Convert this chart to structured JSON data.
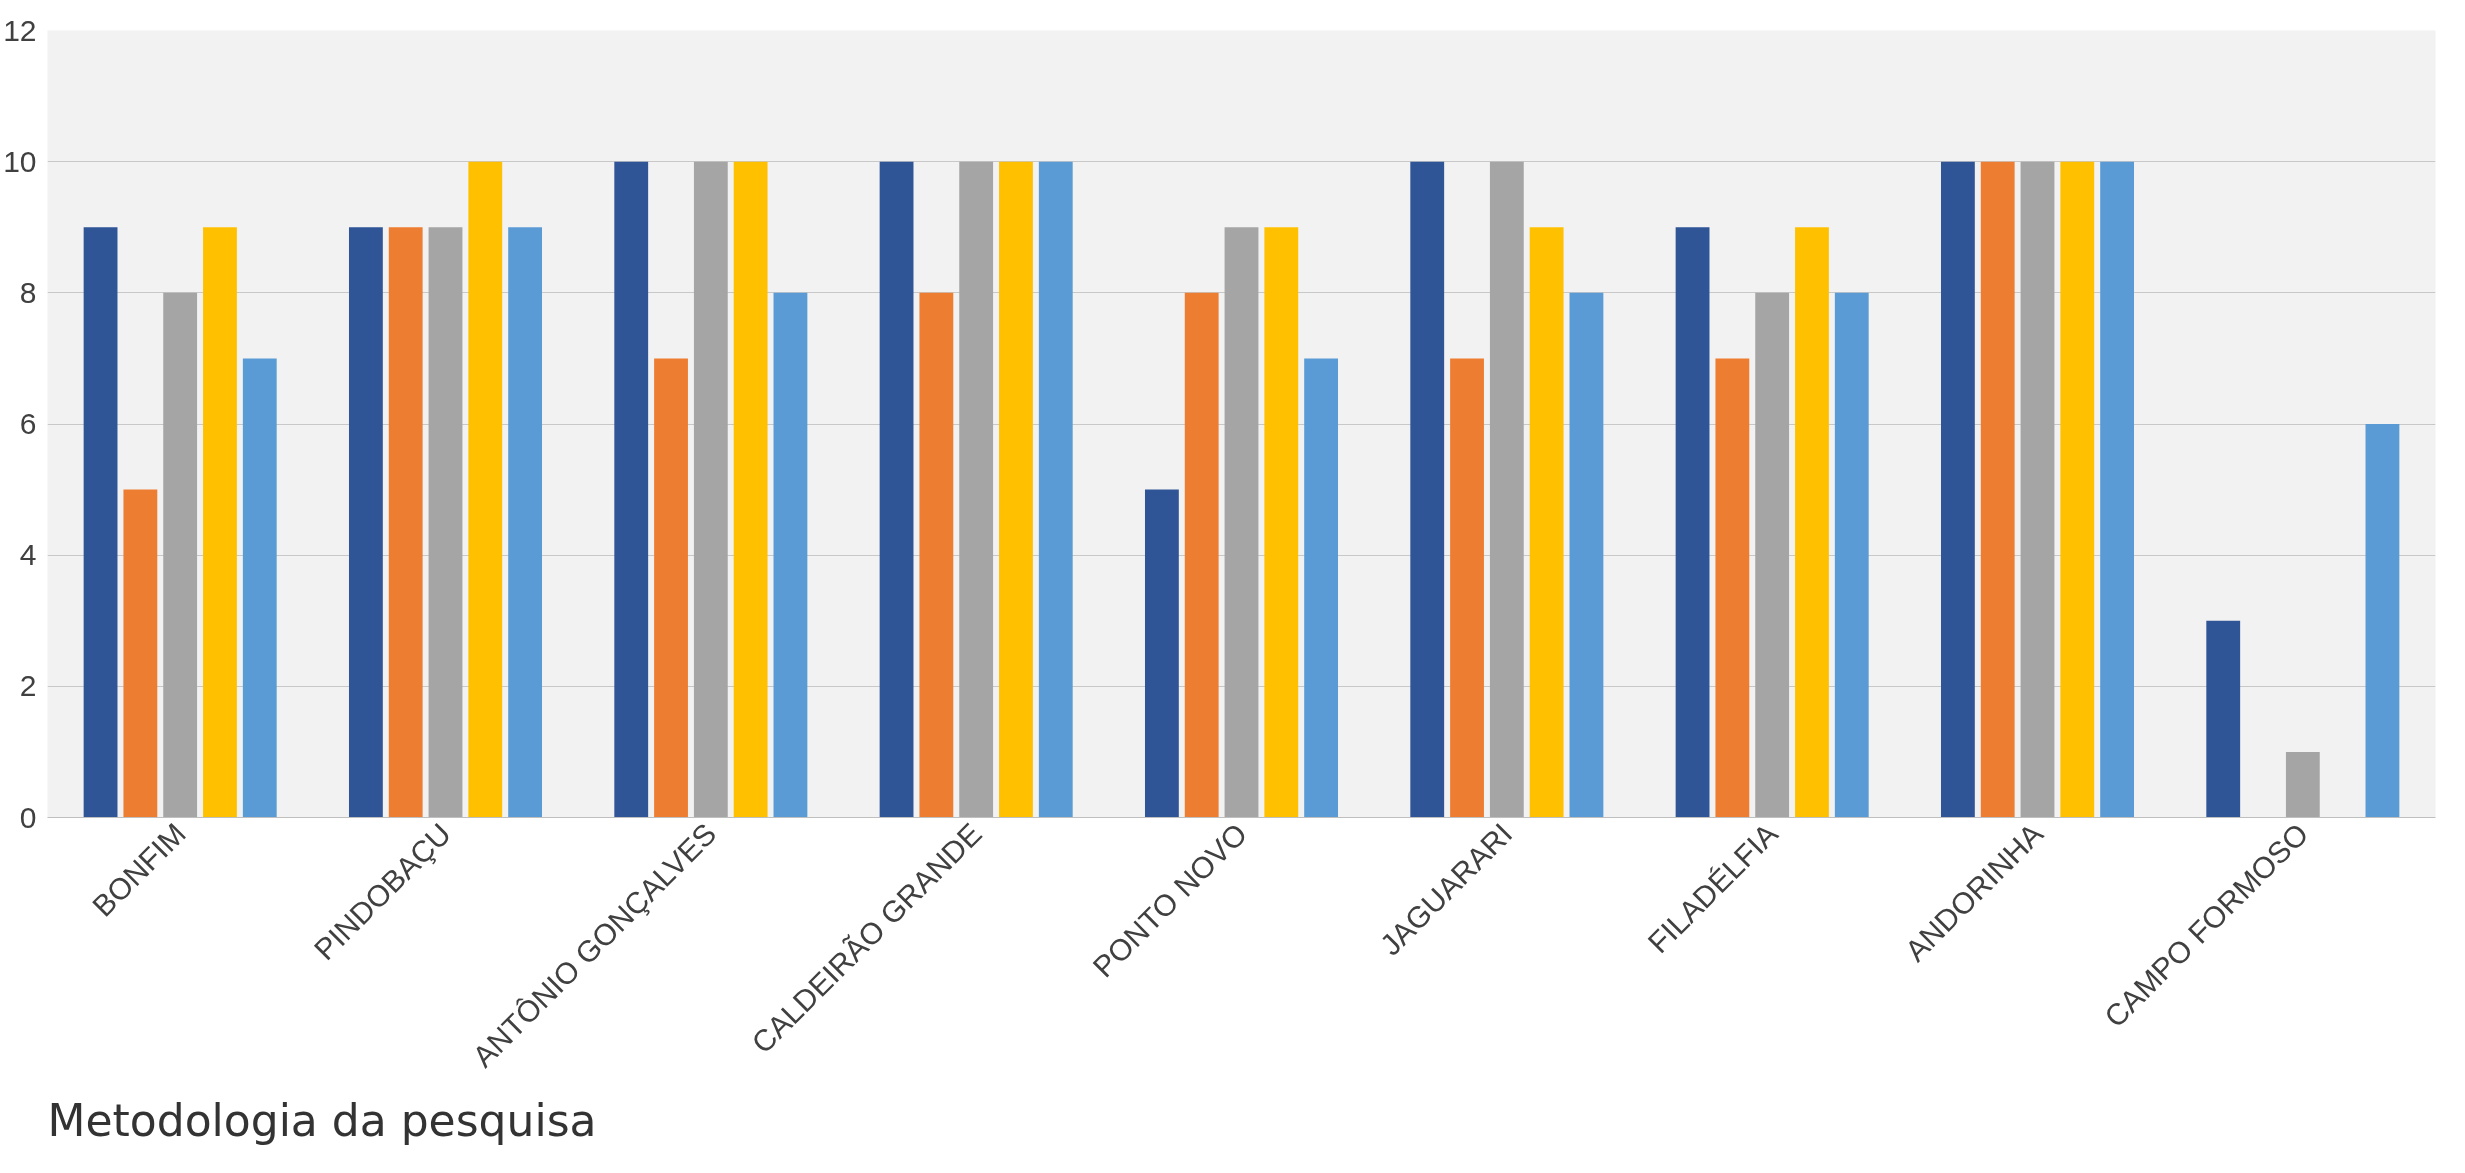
{
  "chart_data": {
    "type": "bar",
    "categories": [
      "BONFIM",
      "PINDOBAÇU",
      "ANTÔNIO GONÇALVES",
      "CALDEIRÃO GRANDE",
      "PONTO NOVO",
      "JAGUARARI",
      "FILADÉLFIA",
      "ANDORINHA",
      "CAMPO FORMOSO"
    ],
    "series": [
      {
        "color": "#2f5597",
        "values": [
          9,
          9,
          10,
          10,
          5,
          10,
          9,
          10,
          3
        ]
      },
      {
        "color": "#ed7d31",
        "values": [
          5,
          9,
          7,
          8,
          8,
          7,
          7,
          10,
          0
        ]
      },
      {
        "color": "#a5a5a5",
        "values": [
          8,
          9,
          10,
          10,
          9,
          10,
          8,
          10,
          1
        ]
      },
      {
        "color": "#ffc000",
        "values": [
          9,
          10,
          10,
          10,
          9,
          9,
          9,
          10,
          0
        ]
      },
      {
        "color": "#5b9bd5",
        "values": [
          7,
          9,
          8,
          10,
          7,
          8,
          8,
          10,
          6
        ]
      }
    ],
    "ylim": [
      0,
      12
    ],
    "yticks": [
      0,
      2,
      4,
      6,
      8,
      10,
      12
    ],
    "grid": "y",
    "annotations": [
      "Metodologia da pesquisa"
    ]
  }
}
